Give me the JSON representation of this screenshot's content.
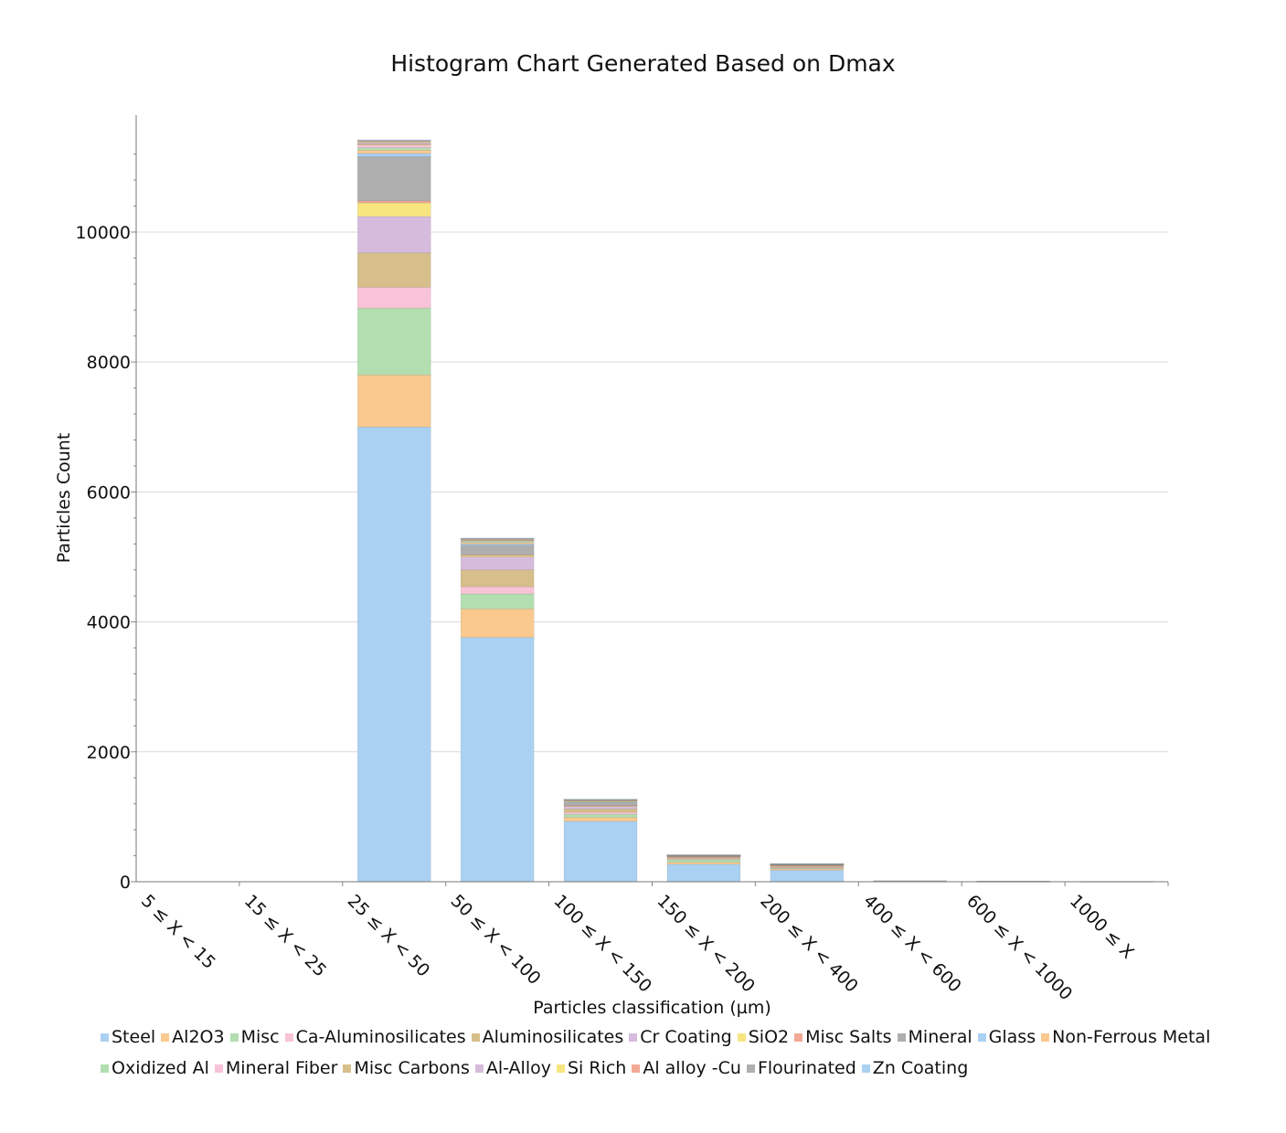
{
  "chart_data": {
    "type": "bar",
    "stacked": true,
    "title": "Histogram Chart Generated Based on Dmax",
    "xlabel": "Particles classification (µm)",
    "ylabel": "Particles Count",
    "ylim": [
      0,
      11800
    ],
    "yticks": [
      0,
      2000,
      4000,
      6000,
      8000,
      10000
    ],
    "grid": true,
    "legend_position": "bottom",
    "categories": [
      "5 ≤ X < 15",
      "15 ≤ X < 25",
      "25 ≤ X < 50",
      "50 ≤ X < 100",
      "100 ≤ X < 150",
      "150 ≤ X < 200",
      "200 ≤ X < 400",
      "400 ≤ X < 600",
      "600 ≤ X < 1000",
      "1000 ≤ X"
    ],
    "series": [
      {
        "name": "Steel",
        "color": "#abd1f2",
        "values": [
          0,
          0,
          7000,
          3760,
          930,
          270,
          180,
          5,
          3,
          2
        ]
      },
      {
        "name": "Al2O3",
        "color": "#f9c990",
        "values": [
          0,
          0,
          800,
          440,
          60,
          30,
          20,
          2,
          1,
          1
        ]
      },
      {
        "name": "Misc",
        "color": "#b3deb0",
        "values": [
          0,
          0,
          1030,
          230,
          50,
          40,
          10,
          2,
          1,
          1
        ]
      },
      {
        "name": "Ca-Aluminosilicates",
        "color": "#f9c3d7",
        "values": [
          0,
          0,
          320,
          110,
          30,
          10,
          10,
          1,
          1,
          0
        ]
      },
      {
        "name": "Aluminosilicates",
        "color": "#d6bf8a",
        "values": [
          0,
          0,
          530,
          260,
          50,
          20,
          15,
          2,
          1,
          1
        ]
      },
      {
        "name": "Cr Coating",
        "color": "#d6bcdc",
        "values": [
          0,
          0,
          560,
          200,
          40,
          10,
          10,
          1,
          1,
          0
        ]
      },
      {
        "name": "SiO2",
        "color": "#f7e680",
        "values": [
          0,
          0,
          210,
          20,
          10,
          5,
          5,
          1,
          0,
          0
        ]
      },
      {
        "name": "Misc Salts",
        "color": "#f2a996",
        "values": [
          0,
          0,
          30,
          10,
          5,
          2,
          2,
          0,
          0,
          0
        ]
      },
      {
        "name": "Mineral",
        "color": "#aeaeae",
        "values": [
          0,
          0,
          680,
          150,
          40,
          10,
          10,
          1,
          1,
          0
        ]
      },
      {
        "name": "Glass",
        "color": "#abd1f2",
        "values": [
          0,
          0,
          50,
          20,
          10,
          3,
          3,
          0,
          0,
          0
        ]
      },
      {
        "name": "Non-Ferrous Metal",
        "color": "#f9c990",
        "values": [
          0,
          0,
          50,
          20,
          10,
          3,
          3,
          0,
          0,
          0
        ]
      },
      {
        "name": "Oxidized Al",
        "color": "#b3deb0",
        "values": [
          0,
          0,
          40,
          20,
          10,
          3,
          2,
          0,
          0,
          0
        ]
      },
      {
        "name": "Mineral Fiber",
        "color": "#f9c3d7",
        "values": [
          0,
          0,
          40,
          10,
          5,
          2,
          2,
          0,
          0,
          0
        ]
      },
      {
        "name": "Misc Carbons",
        "color": "#d6bf8a",
        "values": [
          0,
          0,
          20,
          10,
          5,
          2,
          2,
          0,
          0,
          0
        ]
      },
      {
        "name": "Al-Alloy",
        "color": "#d6bcdc",
        "values": [
          0,
          0,
          20,
          10,
          5,
          2,
          2,
          0,
          0,
          0
        ]
      },
      {
        "name": "Si Rich",
        "color": "#f7e680",
        "values": [
          0,
          0,
          10,
          5,
          3,
          1,
          1,
          0,
          0,
          0
        ]
      },
      {
        "name": "Al alloy -Cu",
        "color": "#f2a996",
        "values": [
          0,
          0,
          10,
          5,
          3,
          1,
          1,
          0,
          0,
          0
        ]
      },
      {
        "name": "Flourinated",
        "color": "#aeaeae",
        "values": [
          0,
          0,
          10,
          5,
          3,
          1,
          1,
          0,
          0,
          0
        ]
      },
      {
        "name": "Zn Coating",
        "color": "#abd1f2",
        "values": [
          0,
          0,
          10,
          5,
          3,
          1,
          1,
          0,
          0,
          0
        ]
      }
    ]
  }
}
